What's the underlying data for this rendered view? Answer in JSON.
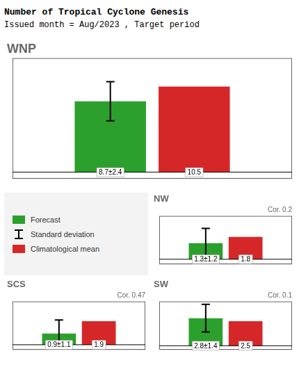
{
  "title": "Number of Tropical Cyclone Genesis",
  "subtitle": "Issued month = Aug/2023 , Target period",
  "error_bar_name": "Standard deviation",
  "chart_data": [
    {
      "type": "bar",
      "title": "WNP",
      "categories": [
        null
      ],
      "series": [
        {
          "name": "Forecast",
          "color": "#2ca02c",
          "values": [
            8.7
          ],
          "std": [
            2.4
          ],
          "value_labels": [
            "8.7±2.4"
          ]
        },
        {
          "name": "Climatological mean",
          "color": "#d62728",
          "values": [
            10.5
          ],
          "value_labels": [
            "10.5"
          ]
        }
      ],
      "ylim": [
        -0.8,
        14
      ],
      "grid": false,
      "tick_labels": false,
      "data_labels": true
    },
    {
      "type": "bar",
      "title": "NW",
      "annotations": [
        "Cor. 0.2"
      ],
      "categories": [
        null
      ],
      "series": [
        {
          "name": "Forecast",
          "color": "#2ca02c",
          "values": [
            1.3
          ],
          "std": [
            1.2
          ],
          "value_labels": [
            "1.3±1.2"
          ]
        },
        {
          "name": "Climatological mean",
          "color": "#d62728",
          "values": [
            1.8
          ],
          "value_labels": [
            "1.8"
          ]
        }
      ],
      "ylim": [
        -0.4,
        3.5
      ],
      "grid": false,
      "tick_labels": false,
      "data_labels": true
    },
    {
      "type": "bar",
      "title": "SCS",
      "annotations": [
        "Cor. 0.47"
      ],
      "categories": [
        null
      ],
      "series": [
        {
          "name": "Forecast",
          "color": "#2ca02c",
          "values": [
            0.9
          ],
          "std": [
            1.1
          ],
          "value_labels": [
            "0.9±1.1"
          ]
        },
        {
          "name": "Climatological mean",
          "color": "#d62728",
          "values": [
            1.9
          ],
          "value_labels": [
            "1.9"
          ]
        }
      ],
      "ylim": [
        -0.4,
        3.5
      ],
      "grid": false,
      "tick_labels": false,
      "data_labels": true
    },
    {
      "type": "bar",
      "title": "SW",
      "annotations": [
        "Cor. 0.1"
      ],
      "categories": [
        null
      ],
      "series": [
        {
          "name": "Forecast",
          "color": "#2ca02c",
          "values": [
            2.8
          ],
          "std": [
            1.4
          ],
          "value_labels": [
            "2.8±1.4"
          ]
        },
        {
          "name": "Climatological mean",
          "color": "#d62728",
          "values": [
            2.5
          ],
          "value_labels": [
            "2.5"
          ]
        }
      ],
      "ylim": [
        -0.4,
        4.5
      ],
      "grid": false,
      "tick_labels": false,
      "data_labels": true
    }
  ]
}
